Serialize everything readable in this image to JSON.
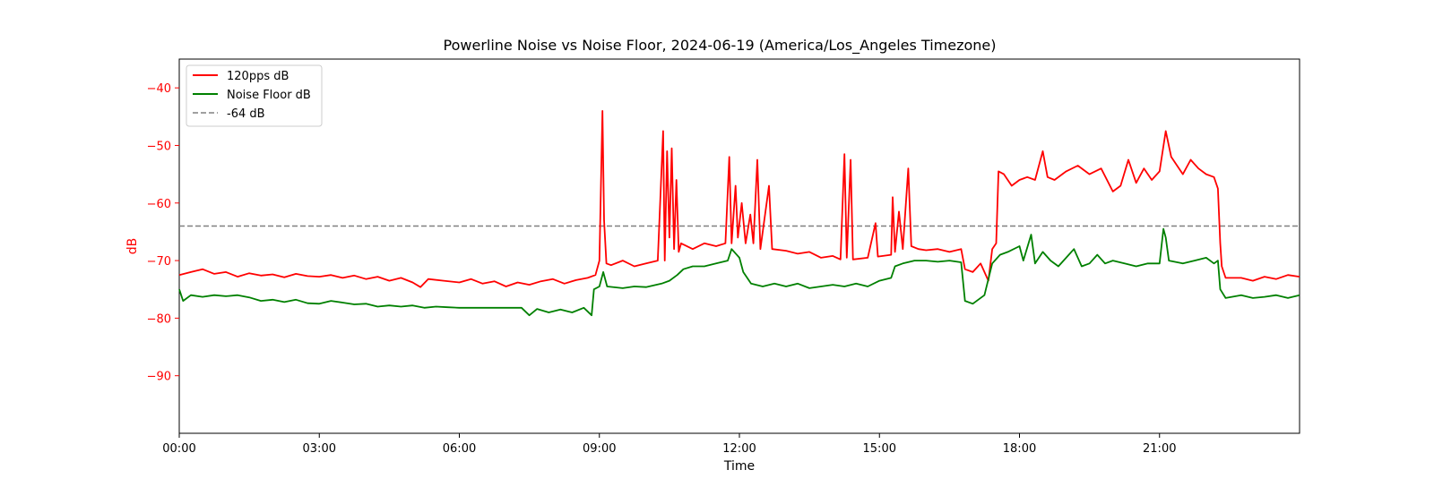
{
  "chart_data": {
    "type": "line",
    "title": "Powerline Noise vs Noise Floor, 2024-06-19 (America/Los_Angeles Timezone)",
    "xlabel": "Time",
    "ylabel": "dB",
    "xlim": [
      "00:00",
      "24:00"
    ],
    "ylim": [
      -100,
      -35
    ],
    "x_ticks": [
      "00:00",
      "03:00",
      "06:00",
      "09:00",
      "12:00",
      "15:00",
      "18:00",
      "21:00"
    ],
    "y_ticks": [
      -40,
      -50,
      -60,
      -70,
      -80,
      -90
    ],
    "y_tick_labels": [
      "−40",
      "−50",
      "−60",
      "−70",
      "−80",
      "−90"
    ],
    "grid": false,
    "legend_position": "top-left",
    "hline": {
      "name": "-64 dB",
      "y": -64,
      "color": "#808080",
      "style": "dashed"
    },
    "series": [
      {
        "name": "120pps dB",
        "color": "#ff0000",
        "points": [
          [
            "00:00",
            -72.5
          ],
          [
            "00:15",
            -72.0
          ],
          [
            "00:30",
            -71.5
          ],
          [
            "00:45",
            -72.3
          ],
          [
            "01:00",
            -72.0
          ],
          [
            "01:15",
            -72.8
          ],
          [
            "01:30",
            -72.2
          ],
          [
            "01:45",
            -72.6
          ],
          [
            "02:00",
            -72.4
          ],
          [
            "02:15",
            -72.9
          ],
          [
            "02:30",
            -72.3
          ],
          [
            "02:45",
            -72.7
          ],
          [
            "03:00",
            -72.8
          ],
          [
            "03:15",
            -72.5
          ],
          [
            "03:30",
            -73.0
          ],
          [
            "03:45",
            -72.6
          ],
          [
            "04:00",
            -73.2
          ],
          [
            "04:15",
            -72.8
          ],
          [
            "04:30",
            -73.5
          ],
          [
            "04:45",
            -73.0
          ],
          [
            "05:00",
            -73.8
          ],
          [
            "05:10",
            -74.6
          ],
          [
            "05:20",
            -73.2
          ],
          [
            "05:40",
            -73.5
          ],
          [
            "06:00",
            -73.8
          ],
          [
            "06:15",
            -73.2
          ],
          [
            "06:30",
            -74.0
          ],
          [
            "06:45",
            -73.6
          ],
          [
            "07:00",
            -74.5
          ],
          [
            "07:15",
            -73.8
          ],
          [
            "07:30",
            -74.2
          ],
          [
            "07:45",
            -73.6
          ],
          [
            "08:00",
            -73.2
          ],
          [
            "08:15",
            -74.0
          ],
          [
            "08:30",
            -73.4
          ],
          [
            "08:45",
            -73.0
          ],
          [
            "08:55",
            -72.5
          ],
          [
            "09:00",
            -70.0
          ],
          [
            "09:04",
            -44.0
          ],
          [
            "09:06",
            -63.0
          ],
          [
            "09:09",
            -70.5
          ],
          [
            "09:15",
            -70.8
          ],
          [
            "09:30",
            -70.0
          ],
          [
            "09:45",
            -71.0
          ],
          [
            "10:00",
            -70.5
          ],
          [
            "10:15",
            -70.0
          ],
          [
            "10:22",
            -47.5
          ],
          [
            "10:24",
            -70.0
          ],
          [
            "10:27",
            -51.0
          ],
          [
            "10:30",
            -66.0
          ],
          [
            "10:33",
            -50.5
          ],
          [
            "10:36",
            -68.0
          ],
          [
            "10:39",
            -56.0
          ],
          [
            "10:42",
            -68.5
          ],
          [
            "10:45",
            -67.0
          ],
          [
            "11:00",
            -68.0
          ],
          [
            "11:15",
            -67.0
          ],
          [
            "11:30",
            -67.5
          ],
          [
            "11:42",
            -67.0
          ],
          [
            "11:47",
            -52.0
          ],
          [
            "11:50",
            -67.0
          ],
          [
            "11:55",
            -57.0
          ],
          [
            "11:58",
            -66.0
          ],
          [
            "12:03",
            -60.0
          ],
          [
            "12:08",
            -67.0
          ],
          [
            "12:14",
            -62.0
          ],
          [
            "12:18",
            -67.0
          ],
          [
            "12:23",
            -52.5
          ],
          [
            "12:27",
            -68.0
          ],
          [
            "12:38",
            -57.0
          ],
          [
            "12:42",
            -68.0
          ],
          [
            "13:00",
            -68.3
          ],
          [
            "13:15",
            -68.8
          ],
          [
            "13:30",
            -68.5
          ],
          [
            "13:45",
            -69.5
          ],
          [
            "14:00",
            -69.2
          ],
          [
            "14:10",
            -69.8
          ],
          [
            "14:15",
            -51.5
          ],
          [
            "14:18",
            -69.5
          ],
          [
            "14:23",
            -52.5
          ],
          [
            "14:26",
            -69.8
          ],
          [
            "14:45",
            -69.5
          ],
          [
            "14:55",
            -63.5
          ],
          [
            "14:58",
            -69.3
          ],
          [
            "15:15",
            -69.0
          ],
          [
            "15:17",
            -59.0
          ],
          [
            "15:20",
            -68.5
          ],
          [
            "15:25",
            -61.5
          ],
          [
            "15:30",
            -68.0
          ],
          [
            "15:37",
            -54.0
          ],
          [
            "15:41",
            -67.5
          ],
          [
            "15:50",
            -68.0
          ],
          [
            "16:00",
            -68.2
          ],
          [
            "16:15",
            -68.0
          ],
          [
            "16:30",
            -68.5
          ],
          [
            "16:45",
            -68.0
          ],
          [
            "16:50",
            -71.5
          ],
          [
            "17:00",
            -72.0
          ],
          [
            "17:10",
            -70.5
          ],
          [
            "17:20",
            -73.5
          ],
          [
            "17:25",
            -68.0
          ],
          [
            "17:30",
            -67.0
          ],
          [
            "17:33",
            -54.5
          ],
          [
            "17:40",
            -55.0
          ],
          [
            "17:50",
            -57.0
          ],
          [
            "18:00",
            -56.0
          ],
          [
            "18:10",
            -55.5
          ],
          [
            "18:20",
            -56.0
          ],
          [
            "18:30",
            -51.0
          ],
          [
            "18:36",
            -55.5
          ],
          [
            "18:45",
            -56.0
          ],
          [
            "19:00",
            -54.5
          ],
          [
            "19:15",
            -53.5
          ],
          [
            "19:30",
            -55.0
          ],
          [
            "19:45",
            -54.0
          ],
          [
            "20:00",
            -58.0
          ],
          [
            "20:10",
            -57.0
          ],
          [
            "20:20",
            -52.5
          ],
          [
            "20:30",
            -56.5
          ],
          [
            "20:40",
            -54.0
          ],
          [
            "20:50",
            -56.0
          ],
          [
            "21:00",
            -54.5
          ],
          [
            "21:08",
            -47.5
          ],
          [
            "21:15",
            -52.0
          ],
          [
            "21:30",
            -55.0
          ],
          [
            "21:40",
            -52.5
          ],
          [
            "21:50",
            -54.0
          ],
          [
            "22:00",
            -55.0
          ],
          [
            "22:10",
            -55.5
          ],
          [
            "22:15",
            -57.5
          ],
          [
            "22:18",
            -67.0
          ],
          [
            "22:20",
            -71.0
          ],
          [
            "22:25",
            -73.0
          ],
          [
            "22:45",
            -73.0
          ],
          [
            "23:00",
            -73.5
          ],
          [
            "23:15",
            -72.8
          ],
          [
            "23:30",
            -73.2
          ],
          [
            "23:45",
            -72.5
          ],
          [
            "24:00",
            -72.8
          ]
        ]
      },
      {
        "name": "Noise Floor dB",
        "color": "#008000",
        "points": [
          [
            "00:00",
            -75.0
          ],
          [
            "00:05",
            -77.0
          ],
          [
            "00:15",
            -76.0
          ],
          [
            "00:30",
            -76.3
          ],
          [
            "00:45",
            -76.0
          ],
          [
            "01:00",
            -76.2
          ],
          [
            "01:15",
            -76.0
          ],
          [
            "01:30",
            -76.4
          ],
          [
            "01:45",
            -77.0
          ],
          [
            "02:00",
            -76.8
          ],
          [
            "02:15",
            -77.2
          ],
          [
            "02:30",
            -76.8
          ],
          [
            "02:45",
            -77.4
          ],
          [
            "03:00",
            -77.5
          ],
          [
            "03:15",
            -77.0
          ],
          [
            "03:30",
            -77.3
          ],
          [
            "03:45",
            -77.6
          ],
          [
            "04:00",
            -77.5
          ],
          [
            "04:15",
            -78.0
          ],
          [
            "04:30",
            -77.8
          ],
          [
            "04:45",
            -78.0
          ],
          [
            "05:00",
            -77.8
          ],
          [
            "05:15",
            -78.2
          ],
          [
            "05:30",
            -78.0
          ],
          [
            "05:45",
            -78.1
          ],
          [
            "06:00",
            -78.2
          ],
          [
            "06:20",
            -78.2
          ],
          [
            "06:40",
            -78.2
          ],
          [
            "07:00",
            -78.2
          ],
          [
            "07:20",
            -78.2
          ],
          [
            "07:30",
            -79.5
          ],
          [
            "07:40",
            -78.4
          ],
          [
            "07:55",
            -79.0
          ],
          [
            "08:10",
            -78.5
          ],
          [
            "08:25",
            -79.0
          ],
          [
            "08:40",
            -78.2
          ],
          [
            "08:50",
            -79.5
          ],
          [
            "08:53",
            -75.0
          ],
          [
            "09:00",
            -74.5
          ],
          [
            "09:05",
            -72.0
          ],
          [
            "09:10",
            -74.5
          ],
          [
            "09:30",
            -74.8
          ],
          [
            "09:45",
            -74.5
          ],
          [
            "10:00",
            -74.6
          ],
          [
            "10:20",
            -74.0
          ],
          [
            "10:30",
            -73.5
          ],
          [
            "10:40",
            -72.5
          ],
          [
            "10:48",
            -71.5
          ],
          [
            "11:00",
            -71.0
          ],
          [
            "11:15",
            -71.0
          ],
          [
            "11:30",
            -70.5
          ],
          [
            "11:45",
            -70.0
          ],
          [
            "11:50",
            -68.0
          ],
          [
            "12:00",
            -69.5
          ],
          [
            "12:05",
            -72.0
          ],
          [
            "12:15",
            -74.0
          ],
          [
            "12:30",
            -74.5
          ],
          [
            "12:45",
            -74.0
          ],
          [
            "13:00",
            -74.5
          ],
          [
            "13:15",
            -74.0
          ],
          [
            "13:30",
            -74.8
          ],
          [
            "13:45",
            -74.5
          ],
          [
            "14:00",
            -74.2
          ],
          [
            "14:15",
            -74.5
          ],
          [
            "14:30",
            -74.0
          ],
          [
            "14:45",
            -74.5
          ],
          [
            "15:00",
            -73.5
          ],
          [
            "15:15",
            -73.0
          ],
          [
            "15:20",
            -71.0
          ],
          [
            "15:30",
            -70.5
          ],
          [
            "15:45",
            -70.0
          ],
          [
            "16:00",
            -70.0
          ],
          [
            "16:15",
            -70.2
          ],
          [
            "16:30",
            -70.0
          ],
          [
            "16:45",
            -70.3
          ],
          [
            "16:50",
            -77.0
          ],
          [
            "17:00",
            -77.5
          ],
          [
            "17:15",
            -76.0
          ],
          [
            "17:25",
            -70.5
          ],
          [
            "17:35",
            -69.0
          ],
          [
            "17:45",
            -68.5
          ],
          [
            "18:00",
            -67.5
          ],
          [
            "18:05",
            -70.0
          ],
          [
            "18:15",
            -65.5
          ],
          [
            "18:20",
            -70.5
          ],
          [
            "18:30",
            -68.5
          ],
          [
            "18:40",
            -70.0
          ],
          [
            "18:50",
            -71.0
          ],
          [
            "19:00",
            -69.5
          ],
          [
            "19:10",
            -68.0
          ],
          [
            "19:20",
            -71.0
          ],
          [
            "19:30",
            -70.5
          ],
          [
            "19:40",
            -69.0
          ],
          [
            "19:50",
            -70.5
          ],
          [
            "20:00",
            -70.0
          ],
          [
            "20:15",
            -70.5
          ],
          [
            "20:30",
            -71.0
          ],
          [
            "20:45",
            -70.5
          ],
          [
            "21:00",
            -70.5
          ],
          [
            "21:05",
            -64.5
          ],
          [
            "21:08",
            -66.0
          ],
          [
            "21:12",
            -70.0
          ],
          [
            "21:30",
            -70.5
          ],
          [
            "21:45",
            -70.0
          ],
          [
            "22:00",
            -69.5
          ],
          [
            "22:10",
            -70.5
          ],
          [
            "22:15",
            -70.0
          ],
          [
            "22:18",
            -75.0
          ],
          [
            "22:25",
            -76.5
          ],
          [
            "22:45",
            -76.0
          ],
          [
            "23:00",
            -76.5
          ],
          [
            "23:15",
            -76.3
          ],
          [
            "23:30",
            -76.0
          ],
          [
            "23:45",
            -76.5
          ],
          [
            "24:00",
            -76.0
          ]
        ]
      }
    ]
  }
}
